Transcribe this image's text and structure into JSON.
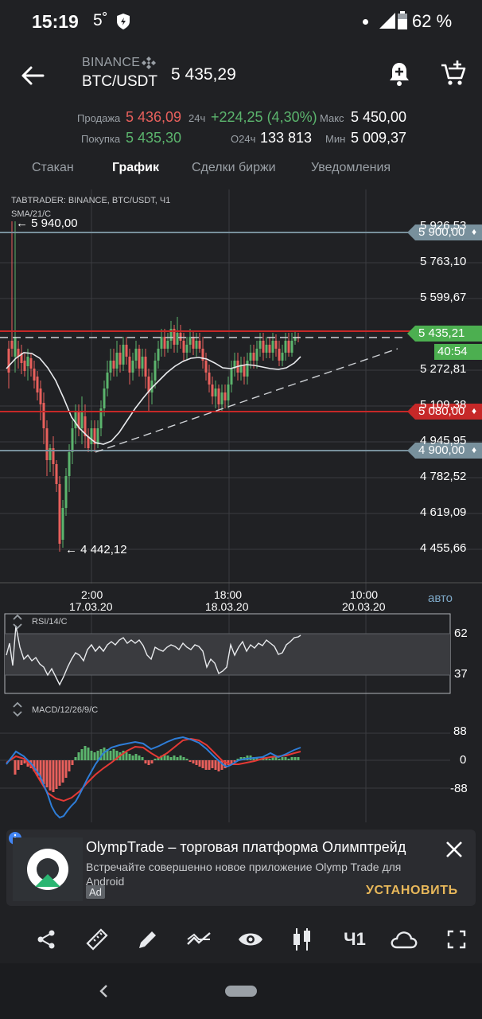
{
  "status_bar": {
    "time": "15:19",
    "temperature": "5˚",
    "battery": "62 %"
  },
  "header": {
    "exchange": "BINANCE",
    "pair": "BTC/USDT",
    "price": "5 435,29"
  },
  "stats": {
    "sell_label": "Продажа",
    "sell_value": "5 436,09",
    "buy_label": "Покупка",
    "buy_value": "5 435,30",
    "change_label": "24ч",
    "change_value": "+224,25 (4,30%)",
    "volume_label": "О24ч",
    "volume_value": "133 813",
    "max_label": "Макс",
    "max_value": "5 450,00",
    "min_label": "Мин",
    "min_value": "5 009,37"
  },
  "tabs": [
    {
      "label": "Стакан",
      "active": false
    },
    {
      "label": "График",
      "active": true
    },
    {
      "label": "Сделки биржи",
      "active": false
    },
    {
      "label": "Уведомления",
      "active": false
    }
  ],
  "chart": {
    "title": "TABTRADER: BINANCE, BTC/USDT, Ч1",
    "indicator": "SMA/21/C",
    "high_marker": "← 5 940,00",
    "low_marker": "← 4 442,12",
    "price_ticks": [
      "5 926,53",
      "5 763,10",
      "5 599,67",
      "5 272,81",
      "5 109,38",
      "4 945,95",
      "4 782,52",
      "4 619,09",
      "4 455,66"
    ],
    "alerts": [
      {
        "label": "5 900,00",
        "color": "#78909c"
      },
      {
        "label": "5 080,00",
        "color": "#c62828"
      },
      {
        "label": "4 900,00",
        "color": "#78909c"
      }
    ],
    "current_price": "5 435,21",
    "countdown": "40:54",
    "time_ticks": [
      {
        "time": "2:00",
        "date": "17.03.20"
      },
      {
        "time": "18:00",
        "date": "18.03.20"
      },
      {
        "time": "10:00",
        "date": "20.03.20"
      }
    ],
    "auto_label": "авто",
    "rsi": {
      "label": "RSI/14/C",
      "ticks": [
        "62",
        "37"
      ]
    },
    "macd": {
      "label": "MACD/12/26/9/C",
      "ticks": [
        "88",
        "0",
        "-88"
      ]
    },
    "colors": {
      "up": "#5bb46d",
      "down": "#e8605c",
      "sma": "#e8eaed",
      "resistance": "#c62828",
      "macd": "#2e7dd7",
      "signal": "#e53935"
    }
  },
  "ad": {
    "title": "OlympTrade – торговая платформа Олимптрейд",
    "description": "Встречайте совершенно новое приложение Olymp Trade для Android",
    "badge": "Ad",
    "cta": "УСТАНОВИТЬ"
  },
  "toolbar": {
    "items": [
      "share-icon",
      "ruler-icon",
      "pencil-icon",
      "indicator-icon",
      "eye-icon",
      "candles-icon",
      "timeframe",
      "cloud-icon",
      "fullscreen-icon"
    ],
    "timeframe": "Ч1"
  }
}
